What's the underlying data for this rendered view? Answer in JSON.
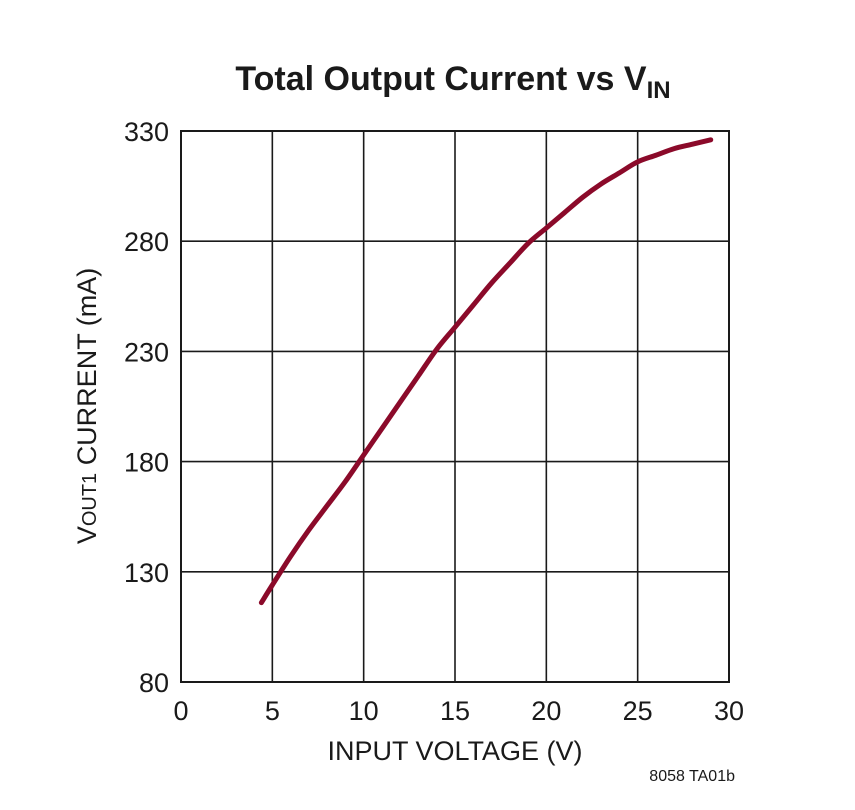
{
  "chart_data": {
    "type": "line",
    "title": {
      "main": "Total Output Current vs V",
      "subscript": "IN"
    },
    "xlabel": "INPUT VOLTAGE (V)",
    "ylabel": {
      "prefix": "V",
      "subscript": "OUT1",
      "suffix": " CURRENT (mA)"
    },
    "xlim": [
      0,
      30
    ],
    "ylim": [
      80,
      330
    ],
    "xticks": [
      0,
      5,
      10,
      15,
      20,
      25,
      30
    ],
    "yticks": [
      80,
      130,
      180,
      230,
      280,
      330
    ],
    "grid": true,
    "series": [
      {
        "color": "#8b0a2a",
        "points": [
          [
            4.4,
            116
          ],
          [
            5.0,
            124
          ],
          [
            6.0,
            137
          ],
          [
            7.0,
            149
          ],
          [
            8.0,
            160
          ],
          [
            9.0,
            171
          ],
          [
            10.0,
            183
          ],
          [
            11.0,
            195
          ],
          [
            12.0,
            207
          ],
          [
            13.0,
            219
          ],
          [
            14.0,
            231
          ],
          [
            15.0,
            241
          ],
          [
            16.0,
            251
          ],
          [
            17.0,
            261
          ],
          [
            18.0,
            270
          ],
          [
            19.0,
            279
          ],
          [
            20.0,
            286
          ],
          [
            21.0,
            293
          ],
          [
            22.0,
            300
          ],
          [
            23.0,
            306
          ],
          [
            24.0,
            311
          ],
          [
            25.0,
            316
          ],
          [
            26.0,
            319
          ],
          [
            27.0,
            322
          ],
          [
            28.0,
            324
          ],
          [
            29.0,
            326
          ]
        ]
      }
    ]
  },
  "footnote": "8058 TA01b"
}
